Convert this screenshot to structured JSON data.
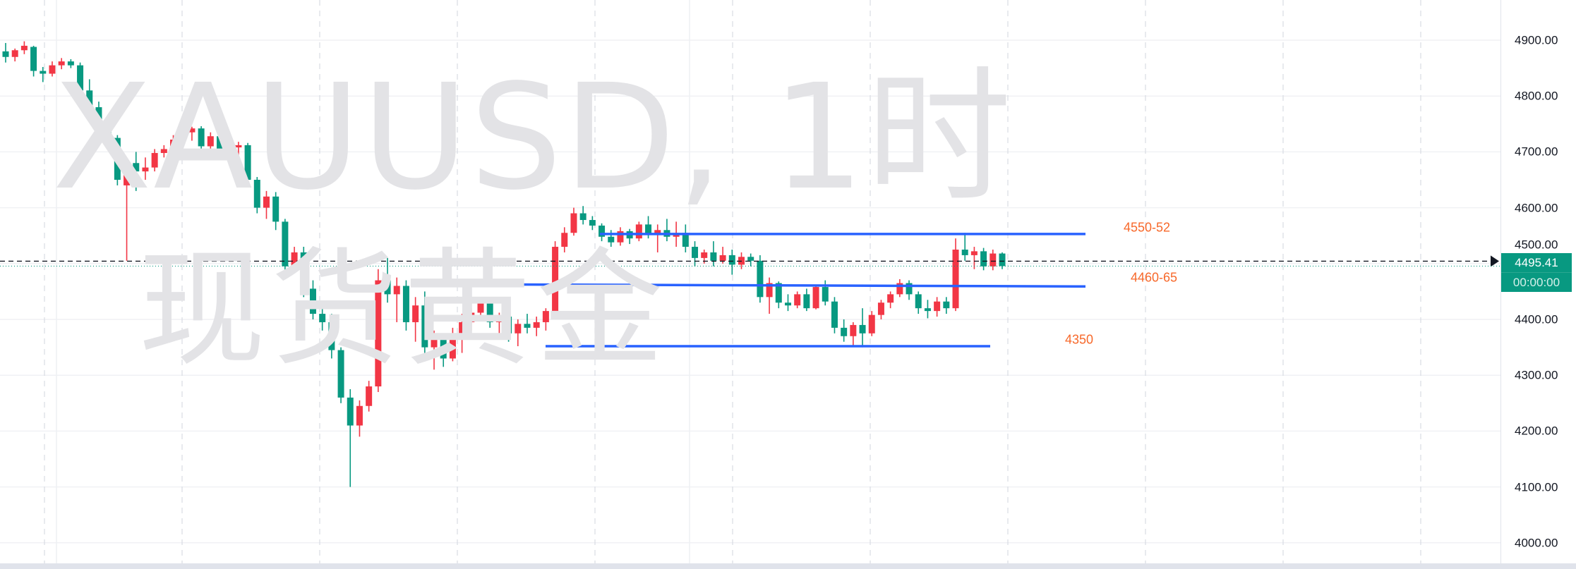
{
  "chart_data": {
    "type": "candlestick",
    "watermark": {
      "symbol_line": "XAUUSD, 1时",
      "name_line": "现货黄金"
    },
    "ylim": [
      3980,
      4930
    ],
    "y_ticks": [
      "4900.00",
      "4800.00",
      "4700.00",
      "4600.00",
      "4500.00",
      "4400.00",
      "4300.00",
      "4200.00",
      "4100.00",
      "4000.00"
    ],
    "grid": true,
    "colors": {
      "up": "#f23645",
      "down": "#089981",
      "levels": "#2962ff",
      "level_labels": "#f7682a",
      "price_badge": "#089981"
    },
    "last_price": "4495.41",
    "countdown": "00:00:00",
    "levels": [
      {
        "label": "4550-52",
        "price_start": 4553,
        "price_end": 4553
      },
      {
        "label": "4460-65",
        "price_start": 4463,
        "price_end": 4459
      },
      {
        "label": "4350",
        "price_start": 4352,
        "price_end": 4352
      }
    ],
    "ohlc": [
      [
        4880,
        4895,
        4860,
        4870
      ],
      [
        4870,
        4885,
        4862,
        4882
      ],
      [
        4882,
        4898,
        4875,
        4890
      ],
      [
        4888,
        4890,
        4835,
        4845
      ],
      [
        4845,
        4852,
        4825,
        4840
      ],
      [
        4840,
        4862,
        4835,
        4855
      ],
      [
        4855,
        4868,
        4848,
        4862
      ],
      [
        4862,
        4866,
        4850,
        4855
      ],
      [
        4855,
        4860,
        4800,
        4810
      ],
      [
        4810,
        4830,
        4770,
        4780
      ],
      [
        4780,
        4790,
        4740,
        4750
      ],
      [
        4750,
        4760,
        4715,
        4725
      ],
      [
        4725,
        4730,
        4640,
        4650
      ],
      [
        4640,
        4690,
        4505,
        4680
      ],
      [
        4680,
        4700,
        4630,
        4665
      ],
      [
        4665,
        4690,
        4650,
        4672
      ],
      [
        4672,
        4705,
        4665,
        4698
      ],
      [
        4698,
        4712,
        4690,
        4705
      ],
      [
        4705,
        4730,
        4700,
        4722
      ],
      [
        4722,
        4740,
        4715,
        4735
      ],
      [
        4735,
        4745,
        4720,
        4742
      ],
      [
        4742,
        4746,
        4700,
        4710
      ],
      [
        4710,
        4735,
        4705,
        4728
      ],
      [
        4728,
        4738,
        4690,
        4700
      ],
      [
        4700,
        4715,
        4680,
        4708
      ],
      [
        4708,
        4718,
        4690,
        4712
      ],
      [
        4712,
        4716,
        4640,
        4650
      ],
      [
        4650,
        4655,
        4590,
        4600
      ],
      [
        4600,
        4630,
        4580,
        4620
      ],
      [
        4620,
        4628,
        4560,
        4575
      ],
      [
        4575,
        4580,
        4480,
        4495
      ],
      [
        4495,
        4530,
        4485,
        4520
      ],
      [
        4520,
        4530,
        4440,
        4455
      ],
      [
        4455,
        4470,
        4400,
        4410
      ],
      [
        4410,
        4430,
        4380,
        4395
      ],
      [
        4395,
        4410,
        4330,
        4345
      ],
      [
        4345,
        4350,
        4250,
        4260
      ],
      [
        4260,
        4275,
        4100,
        4210
      ],
      [
        4210,
        4255,
        4190,
        4245
      ],
      [
        4245,
        4290,
        4235,
        4280
      ],
      [
        4280,
        4490,
        4270,
        4470
      ],
      [
        4470,
        4510,
        4430,
        4445
      ],
      [
        4445,
        4475,
        4395,
        4460
      ],
      [
        4460,
        4470,
        4380,
        4395
      ],
      [
        4395,
        4440,
        4360,
        4425
      ],
      [
        4425,
        4450,
        4340,
        4350
      ],
      [
        4350,
        4380,
        4310,
        4365
      ],
      [
        4365,
        4370,
        4315,
        4330
      ],
      [
        4330,
        4385,
        4325,
        4375
      ],
      [
        4375,
        4410,
        4340,
        4395
      ],
      [
        4395,
        4420,
        4380,
        4412
      ],
      [
        4412,
        4440,
        4400,
        4430
      ],
      [
        4430,
        4435,
        4385,
        4395
      ],
      [
        4395,
        4412,
        4370,
        4405
      ],
      [
        4405,
        4410,
        4360,
        4375
      ],
      [
        4375,
        4400,
        4352,
        4392
      ],
      [
        4392,
        4410,
        4375,
        4385
      ],
      [
        4385,
        4405,
        4370,
        4395
      ],
      [
        4395,
        4420,
        4380,
        4415
      ],
      [
        4415,
        4540,
        4405,
        4530
      ],
      [
        4530,
        4565,
        4520,
        4555
      ],
      [
        4555,
        4600,
        4550,
        4590
      ],
      [
        4590,
        4603,
        4570,
        4578
      ],
      [
        4578,
        4585,
        4560,
        4568
      ],
      [
        4568,
        4572,
        4540,
        4548
      ],
      [
        4548,
        4560,
        4530,
        4538
      ],
      [
        4538,
        4565,
        4532,
        4558
      ],
      [
        4558,
        4562,
        4535,
        4545
      ],
      [
        4545,
        4575,
        4540,
        4570
      ],
      [
        4570,
        4585,
        4545,
        4552
      ],
      [
        4552,
        4570,
        4520,
        4560
      ],
      [
        4560,
        4580,
        4540,
        4548
      ],
      [
        4548,
        4575,
        4530,
        4555
      ],
      [
        4555,
        4570,
        4520,
        4530
      ],
      [
        4530,
        4540,
        4495,
        4510
      ],
      [
        4510,
        4525,
        4500,
        4520
      ],
      [
        4520,
        4540,
        4495,
        4505
      ],
      [
        4505,
        4530,
        4500,
        4515
      ],
      [
        4515,
        4525,
        4480,
        4498
      ],
      [
        4498,
        4520,
        4490,
        4512
      ],
      [
        4512,
        4518,
        4495,
        4505
      ],
      [
        4505,
        4515,
        4430,
        4440
      ],
      [
        4440,
        4475,
        4410,
        4465
      ],
      [
        4465,
        4468,
        4420,
        4430
      ],
      [
        4430,
        4445,
        4415,
        4425
      ],
      [
        4425,
        4450,
        4420,
        4445
      ],
      [
        4445,
        4455,
        4415,
        4420
      ],
      [
        4420,
        4462,
        4418,
        4458
      ],
      [
        4458,
        4470,
        4425,
        4432
      ],
      [
        4432,
        4440,
        4375,
        4385
      ],
      [
        4385,
        4400,
        4360,
        4370
      ],
      [
        4370,
        4395,
        4352,
        4390
      ],
      [
        4390,
        4420,
        4350,
        4375
      ],
      [
        4375,
        4415,
        4370,
        4408
      ],
      [
        4408,
        4435,
        4400,
        4430
      ],
      [
        4430,
        4450,
        4420,
        4445
      ],
      [
        4445,
        4472,
        4440,
        4465
      ],
      [
        4465,
        4470,
        4435,
        4445
      ],
      [
        4445,
        4450,
        4410,
        4420
      ],
      [
        4420,
        4435,
        4402,
        4415
      ],
      [
        4415,
        4440,
        4405,
        4432
      ],
      [
        4432,
        4440,
        4410,
        4420
      ],
      [
        4420,
        4545,
        4415,
        4525
      ],
      [
        4525,
        4555,
        4505,
        4515
      ],
      [
        4515,
        4530,
        4490,
        4522
      ],
      [
        4522,
        4528,
        4488,
        4495
      ],
      [
        4495,
        4525,
        4488,
        4518
      ],
      [
        4518,
        4520,
        4490,
        4495.41
      ]
    ]
  }
}
